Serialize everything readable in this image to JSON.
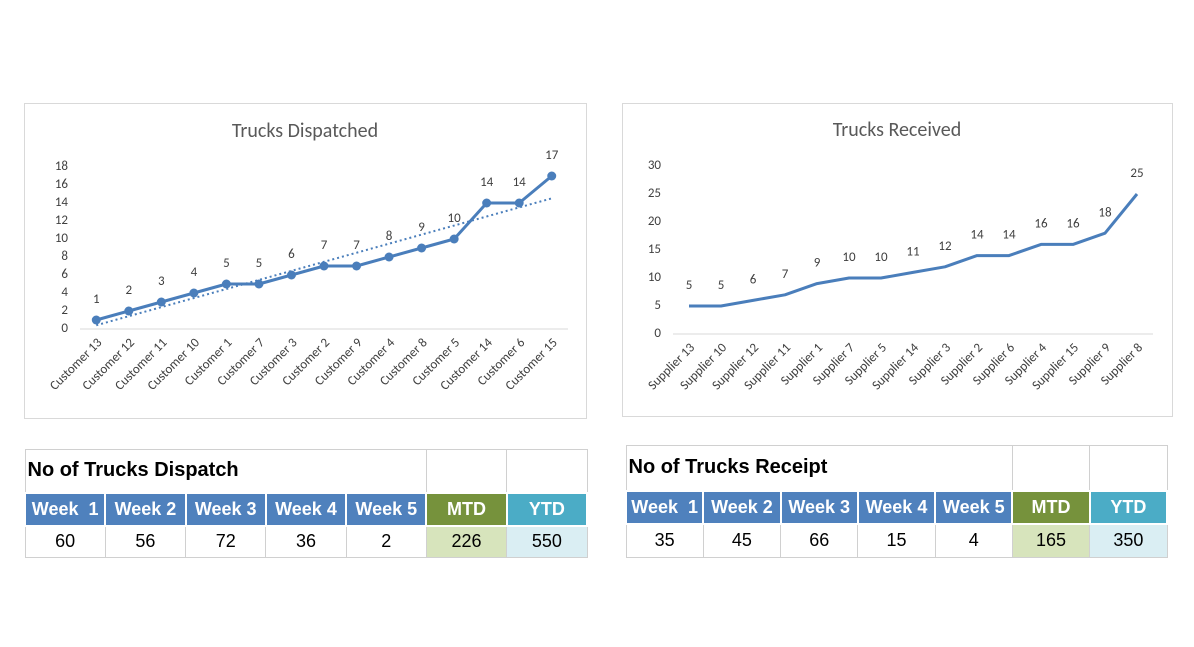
{
  "chart_data": [
    {
      "type": "line",
      "title": "Trucks Dispatched",
      "categories": [
        "Customer 13",
        "Customer 12",
        "Customer 11",
        "Customer 10",
        "Customer 1",
        "Customer 7",
        "Customer 3",
        "Customer 2",
        "Customer 9",
        "Customer 4",
        "Customer 8",
        "Customer 5",
        "Customer 14",
        "Customer 6",
        "Customer 15"
      ],
      "values": [
        1,
        2,
        3,
        4,
        5,
        5,
        6,
        7,
        7,
        8,
        9,
        10,
        14,
        14,
        17
      ],
      "color": "#4a7ebb",
      "markers": true,
      "data_labels": true,
      "trendline": true,
      "ylim": [
        0,
        18
      ],
      "yticks": [
        0,
        2,
        4,
        6,
        8,
        10,
        12,
        14,
        16,
        18
      ],
      "grid": false
    },
    {
      "type": "line",
      "title": "Trucks Received",
      "categories": [
        "Supplier 13",
        "Supplier 10",
        "Supplier 12",
        "Supplier 11",
        "Supplier 1",
        "Supplier 7",
        "Supplier 5",
        "Supplier 14",
        "Supplier 3",
        "Supplier 2",
        "Supplier 6",
        "Supplier 4",
        "Supplier 15",
        "Supplier 9",
        "Supplier 8"
      ],
      "values": [
        5,
        5,
        6,
        7,
        9,
        10,
        10,
        11,
        12,
        14,
        14,
        16,
        16,
        18,
        25
      ],
      "color": "#4a7ebb",
      "markers": false,
      "data_labels": true,
      "trendline": false,
      "ylim": [
        0,
        30
      ],
      "yticks": [
        0,
        5,
        10,
        15,
        20,
        25,
        30
      ],
      "grid": false
    }
  ],
  "tables": [
    {
      "title": "No of Trucks Dispatch",
      "headers": [
        "Week  1",
        "Week 2",
        "Week 3",
        "Week 4",
        "Week 5",
        "MTD",
        "YTD"
      ],
      "values": [
        60,
        56,
        72,
        36,
        2,
        226,
        550
      ]
    },
    {
      "title": "No of Trucks Receipt",
      "headers": [
        "Week  1",
        "Week 2",
        "Week 3",
        "Week 4",
        "Week 5",
        "MTD",
        "YTD"
      ],
      "values": [
        35,
        45,
        66,
        15,
        4,
        165,
        350
      ]
    }
  ]
}
